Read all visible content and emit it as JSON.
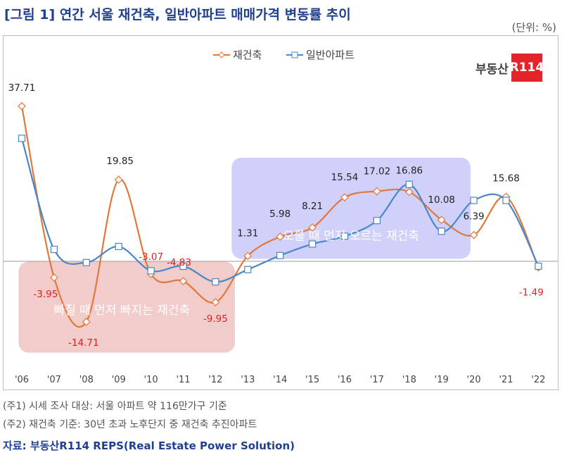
{
  "header": {
    "title": "[그림 1] 연간 서울 재건축, 일반아파트 매매가격 변동률 추이",
    "unit": "(단위: %)"
  },
  "logo": {
    "text": "부동산",
    "badge": "R114",
    "brand_color": "#e3242b"
  },
  "notes": [
    "(주1) 시세 조사 대상: 서울 아파트 약 116만가구 기준",
    "(주2) 재건축 기준: 30년 초과 노후단지 중 재건축 추진아파트"
  ],
  "source": "자료: 부동산R114 REPS(Real Estate Power Solution)",
  "chart_data": {
    "type": "line",
    "categories": [
      "'06",
      "'07",
      "'08",
      "'09",
      "'10",
      "'11",
      "'12",
      "'13",
      "'14",
      "'15",
      "'16",
      "'17",
      "'18",
      "'19",
      "'20",
      "'21",
      "'22"
    ],
    "ylim": [
      -18,
      42
    ],
    "series": [
      {
        "name": "재건축",
        "color": "#e0783a",
        "marker": "diamond",
        "values": [
          37.71,
          -3.95,
          -14.71,
          19.85,
          -3.07,
          -4.83,
          -9.95,
          1.31,
          5.98,
          8.21,
          15.54,
          17.02,
          16.86,
          10.08,
          6.39,
          15.68,
          -1.49
        ],
        "labels": [
          "37.71",
          "-3.95",
          "-14.71",
          "19.85",
          "-3.07",
          "-4.83",
          "-9.95",
          "1.31",
          "5.98",
          "8.21",
          "15.54",
          "17.02",
          "16.86",
          "10.08",
          "6.39",
          "15.68",
          "-1.49"
        ]
      },
      {
        "name": "일반아파트",
        "color": "#4a86c8",
        "marker": "square",
        "values": [
          29.9,
          2.9,
          -0.3,
          3.6,
          -2.3,
          -1.2,
          -5.0,
          -2.0,
          1.4,
          4.2,
          6.1,
          9.9,
          18.7,
          7.3,
          14.8,
          14.8,
          -1.2
        ]
      }
    ],
    "annotations": [
      {
        "text": "빠질 때 먼저 빠지는 재건축",
        "color": "#e8a0a0"
      },
      {
        "text": "오를 때 먼저 오르는 재건축",
        "color": "#a9a9f5"
      }
    ],
    "legend": "top-center",
    "grid": false
  }
}
